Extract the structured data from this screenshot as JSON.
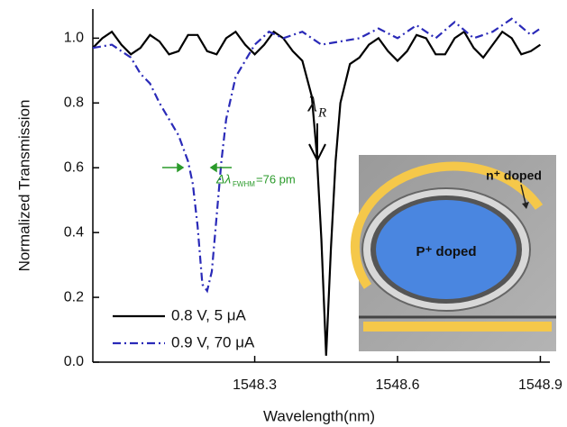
{
  "chart_data": {
    "type": "line",
    "xlabel": "Wavelength(nm)",
    "ylabel": "Normalized Transmission",
    "xlim": [
      1547.96,
      1548.92
    ],
    "xticks": [
      1548.3,
      1548.6,
      1548.9
    ],
    "ylim": [
      0,
      1.09
    ],
    "yticks": [
      {
        "value": 0,
        "label": "0.0"
      },
      0.2,
      0.4,
      0.6,
      0.8,
      {
        "value": 1,
        "label": "1.0"
      }
    ],
    "legend": "lower-left",
    "series": [
      {
        "name": "0.8 V, 5 μA",
        "color": "#000000",
        "style": "solid",
        "x": [
          1547.96,
          1547.98,
          1548.0,
          1548.02,
          1548.04,
          1548.06,
          1548.08,
          1548.1,
          1548.12,
          1548.14,
          1548.16,
          1548.18,
          1548.2,
          1548.22,
          1548.24,
          1548.26,
          1548.28,
          1548.3,
          1548.32,
          1548.34,
          1548.36,
          1548.38,
          1548.4,
          1548.42,
          1548.43,
          1548.44,
          1548.45,
          1548.46,
          1548.47,
          1548.48,
          1548.5,
          1548.52,
          1548.54,
          1548.56,
          1548.58,
          1548.6,
          1548.62,
          1548.64,
          1548.66,
          1548.68,
          1548.7,
          1548.72,
          1548.74,
          1548.76,
          1548.78,
          1548.8,
          1548.82,
          1548.84,
          1548.86,
          1548.88,
          1548.9
        ],
        "values": [
          0.97,
          1.0,
          1.02,
          0.98,
          0.95,
          0.97,
          1.01,
          0.99,
          0.95,
          0.96,
          1.01,
          1.01,
          0.96,
          0.95,
          1.0,
          1.02,
          0.98,
          0.95,
          0.98,
          1.02,
          1.0,
          0.96,
          0.93,
          0.82,
          0.65,
          0.38,
          0.02,
          0.35,
          0.62,
          0.8,
          0.92,
          0.94,
          0.98,
          1.0,
          0.96,
          0.93,
          0.96,
          1.01,
          1.0,
          0.95,
          0.95,
          1.0,
          1.02,
          0.97,
          0.94,
          0.98,
          1.02,
          1.0,
          0.95,
          0.96,
          0.98
        ]
      },
      {
        "name": "0.9 V, 70 μA",
        "color": "#2a2ab8",
        "style": "dashdot",
        "x": [
          1547.96,
          1548.0,
          1548.04,
          1548.06,
          1548.08,
          1548.1,
          1548.12,
          1548.14,
          1548.16,
          1548.17,
          1548.18,
          1548.19,
          1548.2,
          1548.21,
          1548.22,
          1548.23,
          1548.24,
          1548.26,
          1548.28,
          1548.3,
          1548.33,
          1548.36,
          1548.4,
          1548.44,
          1548.48,
          1548.52,
          1548.56,
          1548.6,
          1548.64,
          1548.68,
          1548.72,
          1548.76,
          1548.8,
          1548.84,
          1548.88,
          1548.9
        ],
        "values": [
          0.97,
          0.98,
          0.94,
          0.89,
          0.86,
          0.8,
          0.75,
          0.7,
          0.62,
          0.55,
          0.42,
          0.24,
          0.22,
          0.28,
          0.45,
          0.62,
          0.75,
          0.88,
          0.93,
          0.98,
          1.02,
          1.0,
          1.02,
          0.98,
          0.99,
          1.0,
          1.03,
          1.0,
          1.04,
          1.0,
          1.05,
          1.0,
          1.02,
          1.06,
          1.01,
          1.03
        ]
      }
    ],
    "annotations": {
      "resonance": {
        "symbol": "λ",
        "subscript": "R"
      },
      "fwhm": {
        "symbol": "Δλ",
        "subscript": "FWHM",
        "text": "=76 pm"
      },
      "inset": {
        "outer": "n⁺ doped",
        "inner": "P⁺ doped"
      }
    }
  }
}
